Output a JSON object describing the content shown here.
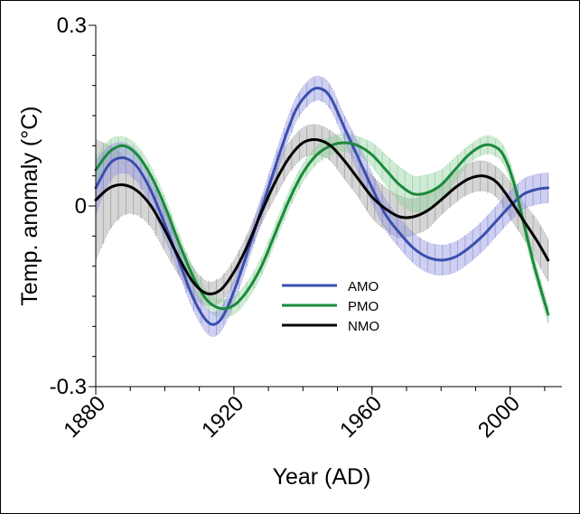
{
  "chart_data": {
    "type": "line",
    "title": "",
    "xlabel": "Year (AD)",
    "ylabel": "Temp. anomaly (°C)",
    "xlim": [
      1880,
      2015
    ],
    "ylim": [
      -0.3,
      0.3
    ],
    "x_ticks": [
      1880,
      1920,
      1960,
      2000
    ],
    "x_tick_labels": [
      "1880",
      "1920",
      "1960",
      "2000"
    ],
    "y_ticks": [
      -0.3,
      0,
      0.3
    ],
    "y_tick_labels": [
      "-0.3",
      "0",
      "0.3"
    ],
    "legend_position": "center",
    "series": [
      {
        "name": "AMO",
        "color": "#3a4fae",
        "band_color": "#8c8fdc",
        "x": [
          1880,
          1884,
          1888,
          1892,
          1896,
          1900,
          1904,
          1908,
          1912,
          1915,
          1918,
          1922,
          1926,
          1930,
          1934,
          1938,
          1942,
          1945,
          1948,
          1952,
          1956,
          1960,
          1964,
          1968,
          1972,
          1976,
          1980,
          1984,
          1988,
          1992,
          1996,
          2000,
          2004,
          2008,
          2011
        ],
        "values": [
          0.03,
          0.07,
          0.08,
          0.065,
          0.025,
          -0.03,
          -0.09,
          -0.15,
          -0.19,
          -0.195,
          -0.17,
          -0.11,
          -0.04,
          0.03,
          0.1,
          0.16,
          0.19,
          0.195,
          0.18,
          0.13,
          0.08,
          0.03,
          -0.015,
          -0.045,
          -0.07,
          -0.085,
          -0.09,
          -0.085,
          -0.07,
          -0.05,
          -0.025,
          0.0,
          0.02,
          0.028,
          0.03
        ],
        "band": [
          0.045,
          0.03,
          0.025,
          0.025,
          0.025,
          0.025,
          0.02,
          0.02,
          0.02,
          0.02,
          0.02,
          0.02,
          0.02,
          0.02,
          0.02,
          0.02,
          0.02,
          0.02,
          0.02,
          0.02,
          0.025,
          0.025,
          0.025,
          0.025,
          0.025,
          0.025,
          0.025,
          0.025,
          0.025,
          0.025,
          0.025,
          0.025,
          0.025,
          0.025,
          0.025
        ]
      },
      {
        "name": "PMO",
        "color": "#1a8a3c",
        "band_color": "#8fcf9c",
        "x": [
          1880,
          1884,
          1888,
          1892,
          1896,
          1900,
          1904,
          1908,
          1912,
          1916,
          1920,
          1924,
          1928,
          1932,
          1936,
          1940,
          1944,
          1948,
          1952,
          1956,
          1960,
          1964,
          1968,
          1972,
          1976,
          1980,
          1984,
          1988,
          1992,
          1995,
          1998,
          2001,
          2004,
          2007,
          2011
        ],
        "values": [
          0.06,
          0.09,
          0.1,
          0.085,
          0.05,
          0.0,
          -0.06,
          -0.115,
          -0.155,
          -0.17,
          -0.165,
          -0.14,
          -0.1,
          -0.045,
          0.01,
          0.055,
          0.085,
          0.1,
          0.105,
          0.1,
          0.085,
          0.06,
          0.035,
          0.02,
          0.022,
          0.035,
          0.06,
          0.085,
          0.1,
          0.1,
          0.085,
          0.04,
          -0.03,
          -0.1,
          -0.18
        ],
        "band": [
          0.02,
          0.02,
          0.015,
          0.015,
          0.015,
          0.015,
          0.015,
          0.015,
          0.015,
          0.015,
          0.015,
          0.015,
          0.015,
          0.015,
          0.015,
          0.015,
          0.015,
          0.015,
          0.015,
          0.015,
          0.02,
          0.025,
          0.03,
          0.03,
          0.03,
          0.025,
          0.02,
          0.015,
          0.015,
          0.015,
          0.015,
          0.015,
          0.015,
          0.015,
          0.015
        ]
      },
      {
        "name": "NMO",
        "color": "#000000",
        "band_color": "#9a9a9a",
        "x": [
          1880,
          1884,
          1888,
          1892,
          1896,
          1900,
          1904,
          1908,
          1912,
          1916,
          1920,
          1924,
          1928,
          1932,
          1936,
          1940,
          1944,
          1948,
          1952,
          1956,
          1960,
          1964,
          1968,
          1972,
          1976,
          1980,
          1984,
          1988,
          1992,
          1996,
          2000,
          2004,
          2008,
          2011
        ],
        "values": [
          0.01,
          0.03,
          0.035,
          0.025,
          0.0,
          -0.04,
          -0.085,
          -0.125,
          -0.145,
          -0.14,
          -0.11,
          -0.065,
          -0.01,
          0.04,
          0.08,
          0.105,
          0.11,
          0.1,
          0.075,
          0.045,
          0.015,
          -0.005,
          -0.018,
          -0.018,
          -0.008,
          0.01,
          0.03,
          0.045,
          0.05,
          0.04,
          0.01,
          -0.025,
          -0.06,
          -0.09
        ],
        "band": [
          0.1,
          0.07,
          0.05,
          0.04,
          0.035,
          0.035,
          0.03,
          0.025,
          0.02,
          0.02,
          0.02,
          0.02,
          0.02,
          0.025,
          0.025,
          0.025,
          0.025,
          0.025,
          0.03,
          0.03,
          0.035,
          0.035,
          0.035,
          0.03,
          0.03,
          0.025,
          0.025,
          0.025,
          0.025,
          0.025,
          0.03,
          0.03,
          0.035,
          0.035
        ]
      }
    ]
  }
}
